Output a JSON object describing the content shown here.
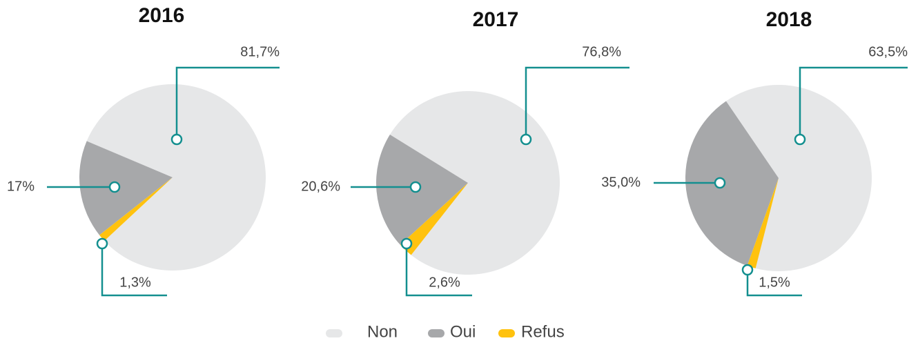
{
  "chart_data": [
    {
      "type": "pie",
      "title": "2016",
      "categories": [
        "Non",
        "Oui",
        "Refus"
      ],
      "values": [
        81.7,
        17,
        1.3
      ],
      "value_labels": [
        "81,7%",
        "17%",
        "1,3%"
      ],
      "colors": [
        "#e6e7e8",
        "#a7a8aa",
        "#ffc20e"
      ]
    },
    {
      "type": "pie",
      "title": "2017",
      "categories": [
        "Non",
        "Oui",
        "Refus"
      ],
      "values": [
        76.8,
        20.6,
        2.6
      ],
      "value_labels": [
        "76,8%",
        "20,6%",
        "2,6%"
      ],
      "colors": [
        "#e6e7e8",
        "#a7a8aa",
        "#ffc20e"
      ]
    },
    {
      "type": "pie",
      "title": "2018",
      "categories": [
        "Non",
        "Oui",
        "Refus"
      ],
      "values": [
        63.5,
        35.0,
        1.5
      ],
      "value_labels": [
        "63,5%",
        "35,0%",
        "1,5%"
      ],
      "colors": [
        "#e6e7e8",
        "#a7a8aa",
        "#ffc20e"
      ]
    }
  ]
}
